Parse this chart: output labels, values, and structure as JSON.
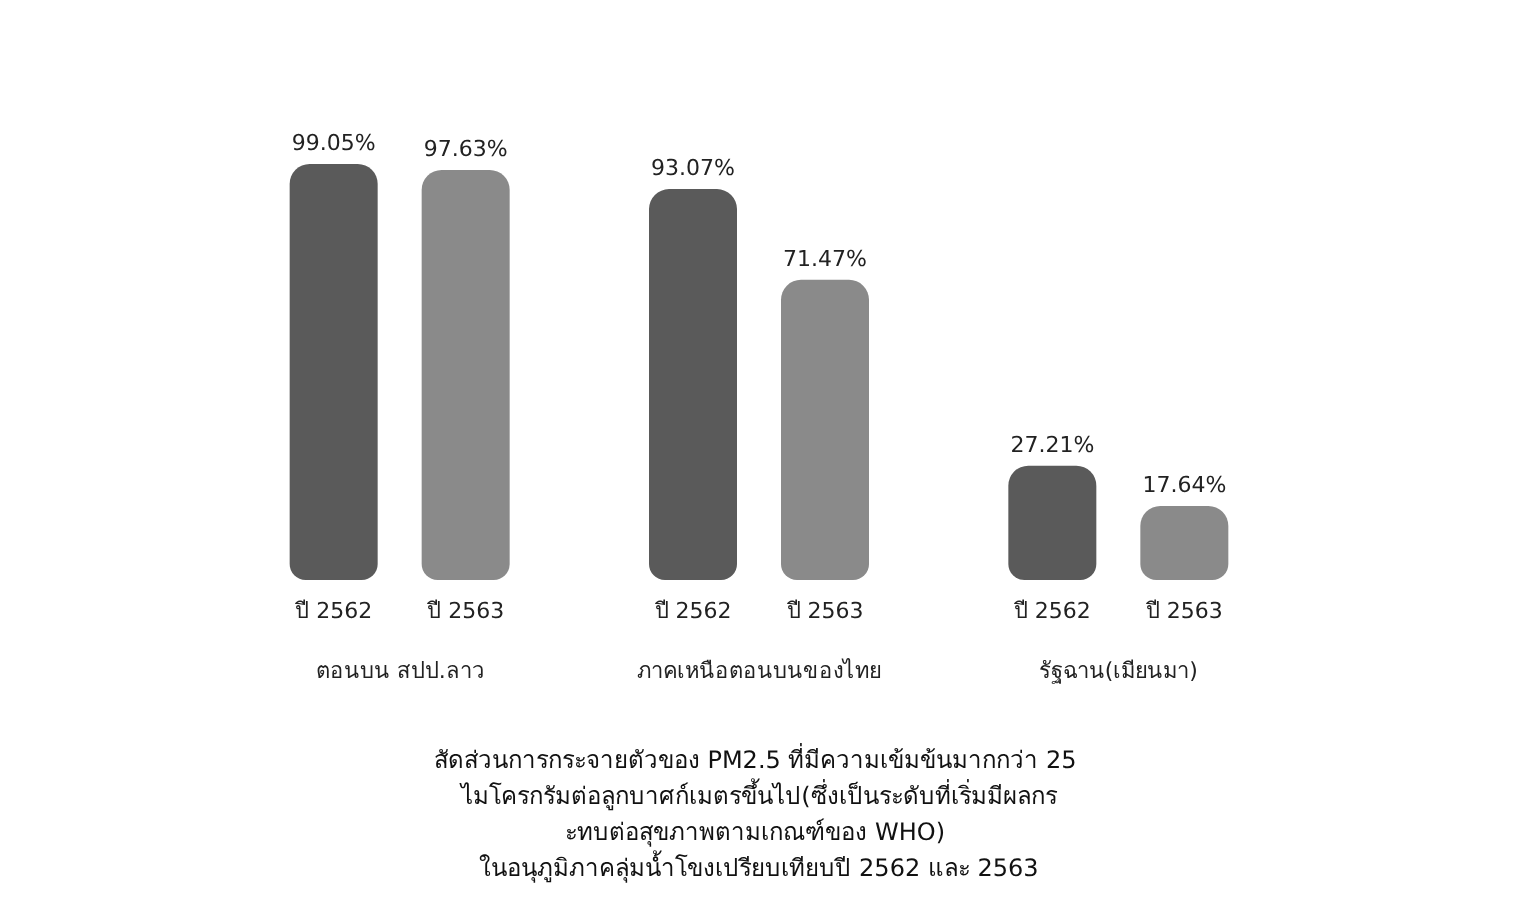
{
  "chart_data": {
    "type": "bar",
    "title": "สัดส่วนการกระจายตัวของ PM2.5 ที่มีความเข้มข้นมากกว่า 25 ไมโครกรัมต่อลูกบาศก์เมตรขึ้นไป(ซึ่งเป็นระดับที่เริ่มมีผลกระทบต่อสุขภาพตามเกณฑ์ของ WHO) ในอนุภูมิภาคลุ่มน้ำโขงเปรียบเทียบปี 2562 และ 2563",
    "categories": [
      "ตอนบน สปป.ลาว",
      "ภาคเหนือตอนบนของไทย",
      "รัฐฉาน(เมียนมา)"
    ],
    "series": [
      {
        "name": "ปี 2562",
        "color": "#5a5a5a",
        "values": [
          99.05,
          93.07,
          27.21
        ],
        "value_labels": [
          "99.05%",
          "93.07%",
          "27.21%"
        ]
      },
      {
        "name": "ปี 2563",
        "color": "#8a8a8a",
        "values": [
          97.63,
          71.47,
          17.64
        ],
        "value_labels": [
          "97.63%",
          "71.47%",
          "17.64%"
        ]
      }
    ],
    "legend": false
  }
}
